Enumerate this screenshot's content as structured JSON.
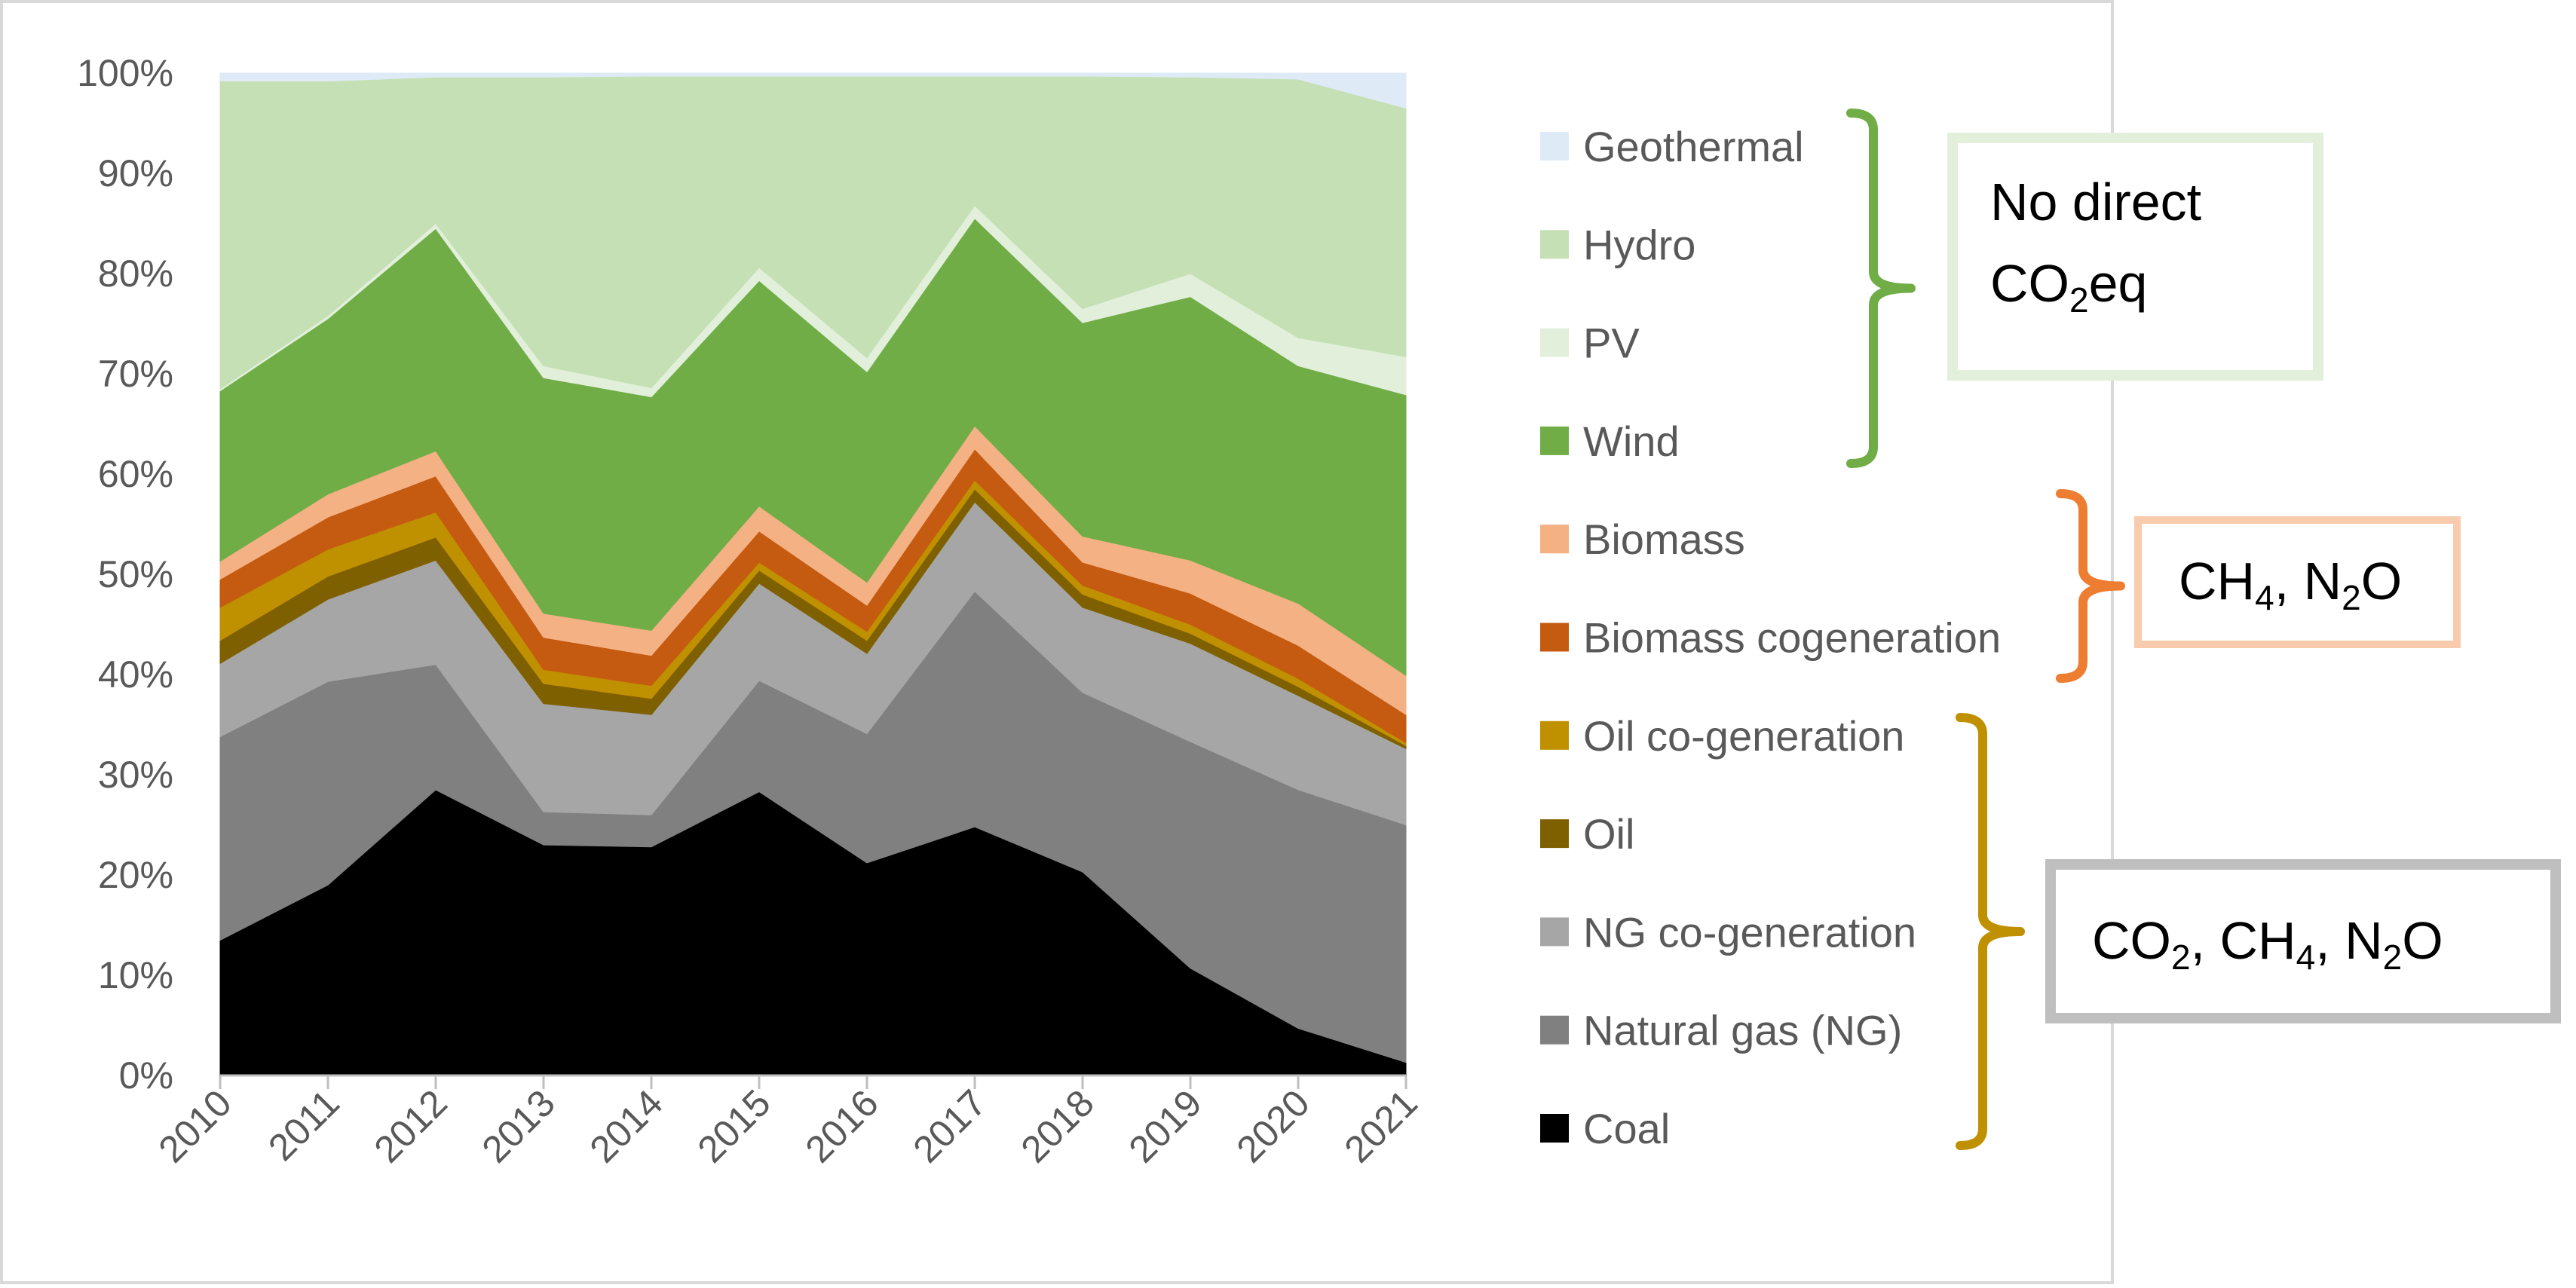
{
  "chart_data": {
    "type": "area",
    "stacked": true,
    "normalized": true,
    "x": [
      "2010",
      "2011",
      "2012",
      "2013",
      "2014",
      "2015",
      "2016",
      "2017",
      "2018",
      "2019",
      "2020",
      "2021"
    ],
    "y_ticks": [
      "0%",
      "10%",
      "20%",
      "30%",
      "40%",
      "50%",
      "60%",
      "70%",
      "80%",
      "90%",
      "100%"
    ],
    "ylim": [
      0,
      100
    ],
    "grid": false,
    "legend_position": "right",
    "series": [
      {
        "name": "Coal",
        "color": "#000000",
        "values": [
          13.5,
          19,
          28.5,
          23,
          22.8,
          28.3,
          21.2,
          24.8,
          20.3,
          10.7,
          4.7,
          1.3
        ]
      },
      {
        "name": "Natural gas (NG)",
        "color": "#808080",
        "values": [
          20.3,
          20.3,
          12.5,
          3.3,
          3.2,
          11.1,
          12.9,
          23.5,
          17.9,
          22.6,
          23.8,
          23.7
        ]
      },
      {
        "name": "NG co-generation",
        "color": "#a6a6a6",
        "values": [
          7.3,
          8.2,
          10.4,
          10.8,
          10,
          9.7,
          8,
          8.9,
          8.5,
          9.8,
          9.4,
          7.6
        ]
      },
      {
        "name": "Oil",
        "color": "#7f6000",
        "values": [
          2.3,
          2.3,
          2.3,
          2,
          1.6,
          1.3,
          1.3,
          1.3,
          1.3,
          1,
          0.9,
          0.3
        ]
      },
      {
        "name": "Oil co-generation",
        "color": "#bf9000",
        "values": [
          3.3,
          2.7,
          2.5,
          1.4,
          1.3,
          0.8,
          0.9,
          0.9,
          0.9,
          0.9,
          0.8,
          0.3
        ]
      },
      {
        "name": "Biomass cogeneration",
        "color": "#c55a11",
        "values": [
          2.8,
          3.2,
          3.6,
          3.2,
          3,
          3.1,
          2.6,
          3.1,
          2.3,
          3.1,
          3.3,
          2.8
        ]
      },
      {
        "name": "Biomass",
        "color": "#f4b183",
        "values": [
          1.8,
          2.3,
          2.5,
          2.4,
          2.5,
          2.5,
          2.3,
          2.3,
          2.6,
          3.3,
          4.2,
          3.9
        ]
      },
      {
        "name": "Wind",
        "color": "#70ad47",
        "values": [
          17,
          17.5,
          22.2,
          23.5,
          23.3,
          22.5,
          21,
          20.7,
          21.3,
          26.3,
          23.7,
          28
        ]
      },
      {
        "name": "PV",
        "color": "#e2efda",
        "values": [
          0.2,
          0.3,
          0.5,
          1.2,
          0.9,
          1.3,
          1.4,
          1.3,
          1.4,
          2.3,
          2.8,
          3.8
        ]
      },
      {
        "name": "Hydro",
        "color": "#c5e0b4",
        "values": [
          30.7,
          23.4,
          14.6,
          28.8,
          31.1,
          19.1,
          28.1,
          12.9,
          23.2,
          19.6,
          25.8,
          24.8
        ]
      },
      {
        "name": "Geothermal",
        "color": "#deebf7",
        "values": [
          0.8,
          0.8,
          0.4,
          0.4,
          0.3,
          0.3,
          0.3,
          0.3,
          0.3,
          0.4,
          0.6,
          3.5
        ]
      }
    ],
    "annotations": [
      {
        "group": "no_direct",
        "color": "#70ad47",
        "box_border": "#e2efda",
        "segments": [
          {
            "t": "No direct",
            "sub": false
          },
          {
            "t": "CO",
            "sub": false
          },
          {
            "t": "2",
            "sub": true
          },
          {
            "t": "eq",
            "sub": false
          }
        ]
      },
      {
        "group": "ch4_n2o",
        "color": "#ed7d31",
        "box_border": "#f8cbad",
        "segments": [
          {
            "t": "CH",
            "sub": false
          },
          {
            "t": "4",
            "sub": true
          },
          {
            "t": ", N",
            "sub": false
          },
          {
            "t": "2",
            "sub": true
          },
          {
            "t": "O",
            "sub": false
          }
        ]
      },
      {
        "group": "co2_ch4_n2o",
        "color": "#bf9000",
        "box_border": "#bfbfbf",
        "segments": [
          {
            "t": "CO",
            "sub": false
          },
          {
            "t": "2",
            "sub": true
          },
          {
            "t": ", CH",
            "sub": false
          },
          {
            "t": "4",
            "sub": true
          },
          {
            "t": ", N",
            "sub": false
          },
          {
            "t": "2",
            "sub": true
          },
          {
            "t": "O",
            "sub": false
          }
        ]
      }
    ]
  }
}
